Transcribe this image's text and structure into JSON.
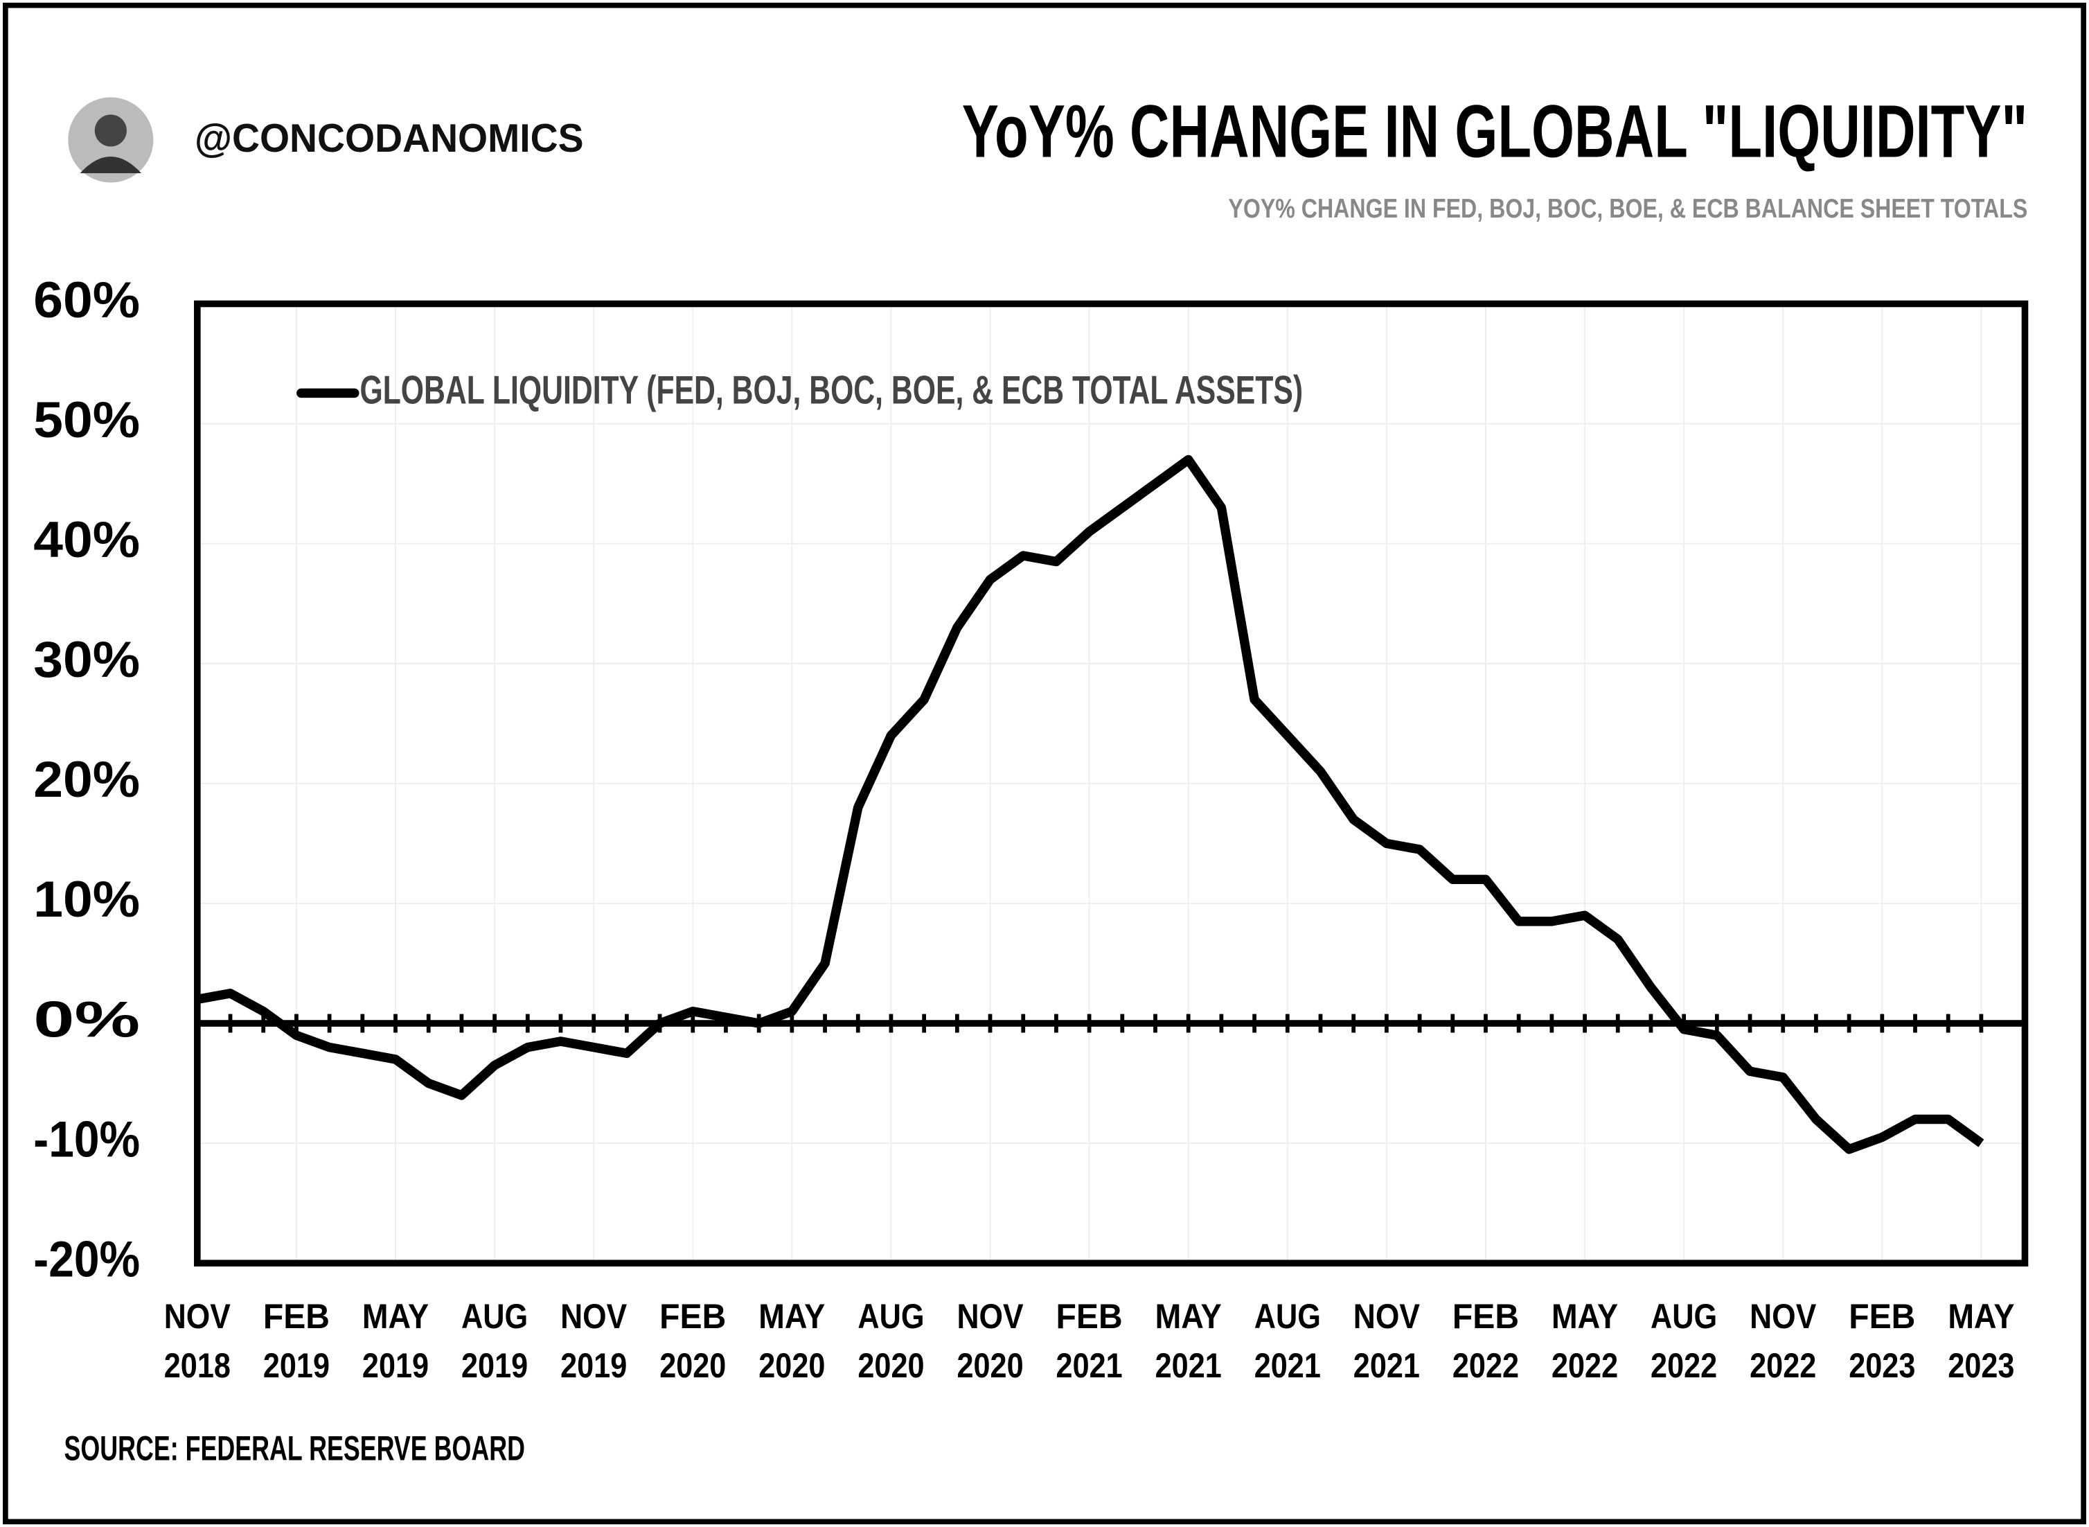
{
  "chart_data": {
    "type": "line",
    "handle": "@CONCODANOMICS",
    "title": "YoY% CHANGE IN GLOBAL \"LIQUIDITY\"",
    "subtitle": "YOY% CHANGE IN FED, BOJ, BOC, BOE, & ECB BALANCE SHEET TOTALS",
    "source": "SOURCE: FEDERAL RESERVE BOARD",
    "x": [
      "2018-11",
      "2018-12",
      "2019-01",
      "2019-02",
      "2019-03",
      "2019-04",
      "2019-05",
      "2019-06",
      "2019-07",
      "2019-08",
      "2019-09",
      "2019-10",
      "2019-11",
      "2019-12",
      "2020-01",
      "2020-02",
      "2020-03",
      "2020-04",
      "2020-05",
      "2020-06",
      "2020-07",
      "2020-08",
      "2020-09",
      "2020-10",
      "2020-11",
      "2020-12",
      "2021-01",
      "2021-02",
      "2021-03",
      "2021-04",
      "2021-05",
      "2021-06",
      "2021-07",
      "2021-08",
      "2021-09",
      "2021-10",
      "2021-11",
      "2021-12",
      "2022-01",
      "2022-02",
      "2022-03",
      "2022-04",
      "2022-05",
      "2022-06",
      "2022-07",
      "2022-08",
      "2022-09",
      "2022-10",
      "2022-11",
      "2022-12",
      "2023-01",
      "2023-02",
      "2023-03",
      "2023-04",
      "2023-05"
    ],
    "series": [
      {
        "name": "GLOBAL LIQUIDITY (FED, BOJ, BOC, BOE, & ECB TOTAL ASSETS)",
        "color": "#000000",
        "values": [
          2,
          2.5,
          1,
          -1,
          -2,
          -2.5,
          -3,
          -5,
          -6,
          -3.5,
          -2,
          -1.5,
          -2,
          -2.5,
          0,
          1,
          0.5,
          0,
          1,
          5,
          18,
          24,
          27,
          33,
          37,
          39,
          38.5,
          41,
          43,
          45,
          47,
          43,
          27,
          24,
          21,
          17,
          15,
          14.5,
          12,
          12,
          8.5,
          8.5,
          9,
          7,
          3,
          -0.5,
          -1,
          -4,
          -4.5,
          -8,
          -10.5,
          -9.5,
          -8,
          -8,
          -10
        ]
      }
    ],
    "xlim": [
      "2018-11",
      "2023-06"
    ],
    "xticks": [
      {
        "value": "2018-11",
        "label": "NOV 2018"
      },
      {
        "value": "2019-02",
        "label": "FEB 2019"
      },
      {
        "value": "2019-05",
        "label": "MAY 2019"
      },
      {
        "value": "2019-08",
        "label": "AUG 2019"
      },
      {
        "value": "2019-11",
        "label": "NOV 2019"
      },
      {
        "value": "2020-02",
        "label": "FEB 2020"
      },
      {
        "value": "2020-05",
        "label": "MAY 2020"
      },
      {
        "value": "2020-08",
        "label": "AUG 2020"
      },
      {
        "value": "2020-11",
        "label": "NOV 2020"
      },
      {
        "value": "2021-02",
        "label": "FEB 2021"
      },
      {
        "value": "2021-05",
        "label": "MAY 2021"
      },
      {
        "value": "2021-08",
        "label": "AUG 2021"
      },
      {
        "value": "2021-11",
        "label": "NOV 2021"
      },
      {
        "value": "2022-02",
        "label": "FEB 2022"
      },
      {
        "value": "2022-05",
        "label": "MAY 2022"
      },
      {
        "value": "2022-08",
        "label": "AUG 2022"
      },
      {
        "value": "2022-11",
        "label": "NOV 2022"
      },
      {
        "value": "2023-02",
        "label": "FEB 2023"
      },
      {
        "value": "2023-05",
        "label": "MAY 2023"
      }
    ],
    "ylim": [
      -20,
      60
    ],
    "yticks": [
      {
        "value": -20,
        "label": "-20%"
      },
      {
        "value": -10,
        "label": "-10%"
      },
      {
        "value": 0,
        "label": "0%"
      },
      {
        "value": 10,
        "label": "10%"
      },
      {
        "value": 20,
        "label": "20%"
      },
      {
        "value": 30,
        "label": "30%"
      },
      {
        "value": 40,
        "label": "40%"
      },
      {
        "value": 50,
        "label": "50%"
      },
      {
        "value": 60,
        "label": "60%"
      }
    ],
    "grid": true,
    "legend": "upper left"
  }
}
